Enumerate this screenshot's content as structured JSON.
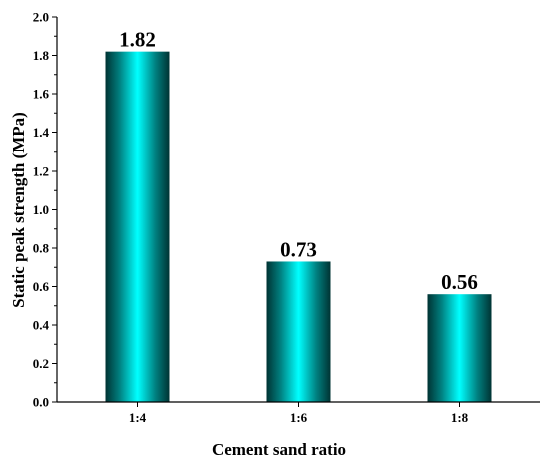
{
  "chart_data": {
    "type": "bar",
    "categories": [
      "1:4",
      "1:6",
      "1:8"
    ],
    "values": [
      1.82,
      0.73,
      0.56
    ],
    "value_labels": [
      "1.82",
      "0.73",
      "0.56"
    ],
    "xlabel": "Cement sand ratio",
    "ylabel": "Static peak strength (MPa)",
    "ylim": [
      0.0,
      2.0
    ],
    "yticks": [
      "0.0",
      "0.2",
      "0.4",
      "0.6",
      "0.8",
      "1.0",
      "1.2",
      "1.4",
      "1.6",
      "1.8",
      "2.0"
    ],
    "grid": false,
    "bar_colors": {
      "center": "#00ffff",
      "edge": "#003333"
    }
  }
}
